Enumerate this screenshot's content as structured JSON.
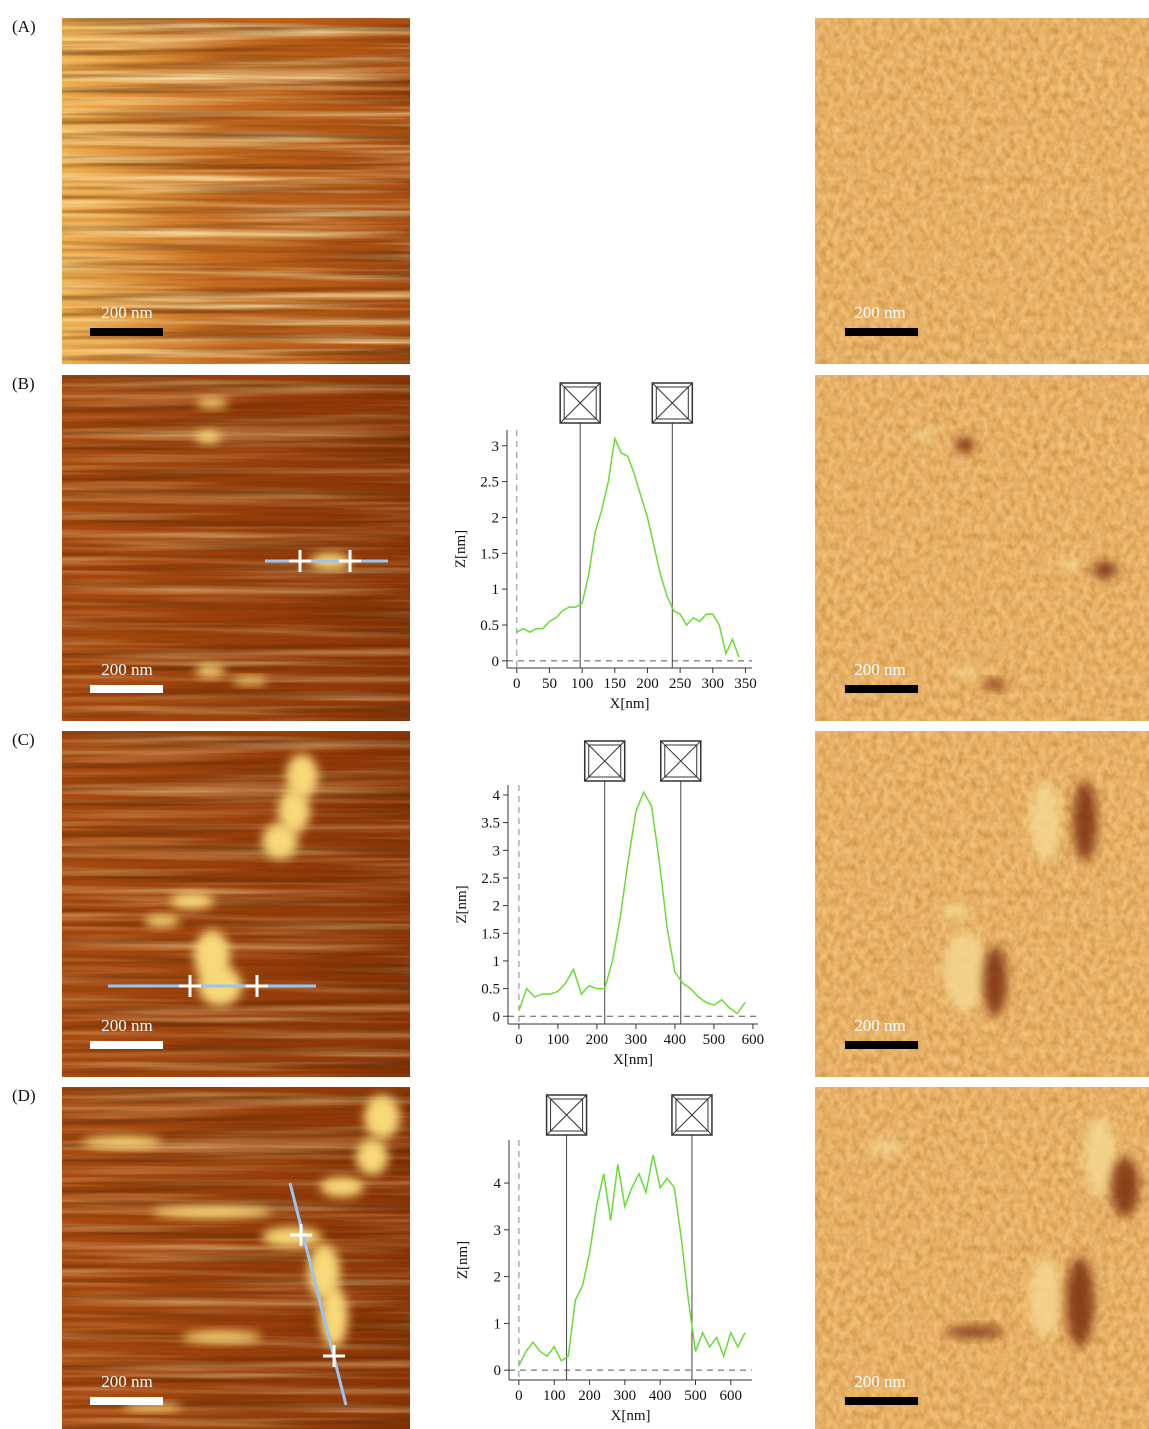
{
  "panels": [
    {
      "label": "(A)",
      "scale_left": "200 nm",
      "scale_right": "200 nm"
    },
    {
      "label": "(B)",
      "scale_left": "200 nm",
      "scale_right": "200 nm"
    },
    {
      "label": "(C)",
      "scale_left": "200 nm",
      "scale_right": "200 nm"
    },
    {
      "label": "(D)",
      "scale_left": "200 nm",
      "scale_right": "200 nm"
    }
  ],
  "chart_data": [
    {
      "type": "line",
      "x_label": "X[nm]",
      "y_label": "Z[nm]",
      "color": "#66dd33",
      "x": [
        0,
        10,
        20,
        30,
        40,
        50,
        60,
        70,
        80,
        90,
        100,
        110,
        120,
        130,
        140,
        150,
        160,
        170,
        180,
        190,
        200,
        210,
        220,
        230,
        240,
        250,
        260,
        270,
        280,
        290,
        300,
        310,
        320,
        330,
        340
      ],
      "values": [
        0.4,
        0.45,
        0.4,
        0.45,
        0.45,
        0.55,
        0.6,
        0.7,
        0.75,
        0.75,
        0.8,
        1.2,
        1.8,
        2.1,
        2.5,
        3.1,
        2.9,
        2.85,
        2.6,
        2.3,
        2.0,
        1.6,
        1.2,
        0.9,
        0.7,
        0.65,
        0.5,
        0.6,
        0.55,
        0.65,
        0.65,
        0.5,
        0.1,
        0.3,
        0.05
      ],
      "cursors": [
        97,
        238
      ],
      "xlim": [
        -15,
        360
      ],
      "ylim": [
        -0.1,
        3.22
      ],
      "xticks": [
        0,
        50,
        100,
        150,
        200,
        250,
        300,
        350
      ],
      "yticks": [
        0,
        0.5,
        1,
        1.5,
        2,
        2.5,
        3
      ]
    },
    {
      "type": "line",
      "x_label": "X[nm]",
      "y_label": "Z[nm]",
      "color": "#66dd33",
      "x": [
        0,
        20,
        40,
        60,
        80,
        100,
        120,
        140,
        160,
        180,
        200,
        220,
        240,
        260,
        280,
        300,
        320,
        340,
        360,
        380,
        400,
        420,
        440,
        460,
        480,
        500,
        520,
        540,
        560,
        580
      ],
      "values": [
        0.1,
        0.5,
        0.35,
        0.4,
        0.4,
        0.45,
        0.6,
        0.85,
        0.4,
        0.55,
        0.5,
        0.5,
        1.0,
        1.8,
        2.8,
        3.7,
        4.05,
        3.8,
        2.8,
        1.6,
        0.8,
        0.6,
        0.5,
        0.35,
        0.25,
        0.2,
        0.3,
        0.15,
        0.05,
        0.25
      ],
      "cursors": [
        220,
        415
      ],
      "xlim": [
        -28,
        613
      ],
      "ylim": [
        -0.14,
        4.18
      ],
      "xticks": [
        0,
        100,
        200,
        300,
        400,
        500,
        600
      ],
      "yticks": [
        0,
        0.5,
        1,
        1.5,
        2,
        2.5,
        3,
        3.5,
        4
      ]
    },
    {
      "type": "line",
      "x_label": "X[nm]",
      "y_label": "Z[nm]",
      "color": "#66dd33",
      "x": [
        0,
        20,
        40,
        60,
        80,
        100,
        120,
        140,
        160,
        180,
        200,
        220,
        240,
        260,
        280,
        300,
        320,
        340,
        360,
        380,
        400,
        420,
        440,
        460,
        480,
        500,
        520,
        540,
        560,
        580,
        600,
        620,
        640
      ],
      "values": [
        0.1,
        0.4,
        0.6,
        0.4,
        0.3,
        0.5,
        0.2,
        0.3,
        1.5,
        1.8,
        2.5,
        3.5,
        4.2,
        3.2,
        4.4,
        3.5,
        3.9,
        4.2,
        3.8,
        4.6,
        3.9,
        4.1,
        3.9,
        2.8,
        1.5,
        0.4,
        0.8,
        0.5,
        0.7,
        0.3,
        0.8,
        0.5,
        0.8
      ],
      "cursors": [
        135,
        490
      ],
      "xlim": [
        -28,
        660
      ],
      "ylim": [
        -0.21,
        4.92
      ],
      "xticks": [
        0,
        100,
        200,
        300,
        400,
        500,
        600
      ],
      "yticks": [
        0,
        1,
        2,
        3,
        4
      ]
    }
  ]
}
